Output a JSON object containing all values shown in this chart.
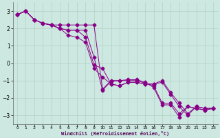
{
  "xlabel": "Windchill (Refroidissement éolien,°C)",
  "bg_color": "#cce8e0",
  "line_color": "#880088",
  "xlim": [
    -0.5,
    23.5
  ],
  "ylim": [
    -3.5,
    3.5
  ],
  "yticks": [
    -3,
    -2,
    -1,
    0,
    1,
    2,
    3
  ],
  "xticks": [
    0,
    1,
    2,
    3,
    4,
    5,
    6,
    7,
    8,
    9,
    10,
    11,
    12,
    13,
    14,
    15,
    16,
    17,
    18,
    19,
    20,
    21,
    22,
    23
  ],
  "lines": [
    [
      2.8,
      3.0,
      2.5,
      2.3,
      2.2,
      2.0,
      1.6,
      1.5,
      1.2,
      -0.3,
      -0.8,
      -1.2,
      -1.3,
      -1.1,
      -1.1,
      -1.2,
      -1.2,
      -1.1,
      -1.8,
      -2.5,
      -3.0,
      -2.5,
      -2.6,
      -2.6
    ],
    [
      2.8,
      3.0,
      2.5,
      2.3,
      2.2,
      2.0,
      1.9,
      1.9,
      1.5,
      -0.1,
      -0.3,
      -1.2,
      -1.3,
      -1.1,
      -1.1,
      -1.2,
      -1.2,
      -1.0,
      -1.7,
      -2.3,
      -2.9,
      -2.5,
      -2.6,
      -2.6
    ],
    [
      2.8,
      3.0,
      2.5,
      2.3,
      2.2,
      2.0,
      1.9,
      1.9,
      1.9,
      0.35,
      -1.55,
      -1.05,
      -1.0,
      -1.0,
      -1.0,
      -1.15,
      -1.3,
      -2.3,
      -2.3,
      -2.9,
      -2.5,
      -2.6,
      -2.7,
      -2.6
    ],
    [
      2.8,
      3.0,
      2.5,
      2.3,
      2.2,
      2.2,
      2.2,
      2.2,
      2.2,
      2.2,
      -1.5,
      -1.0,
      -1.0,
      -0.95,
      -0.95,
      -1.1,
      -1.4,
      -2.4,
      -2.4,
      -3.1,
      -2.5,
      -2.6,
      -2.7,
      -2.6
    ]
  ],
  "marker_x": [
    [
      0,
      1,
      2,
      3,
      5,
      6,
      7,
      8,
      9,
      10,
      11,
      12,
      13,
      14,
      15,
      16,
      17,
      18,
      19,
      20,
      21,
      22,
      23
    ],
    [
      0,
      1,
      2,
      3,
      5,
      6,
      7,
      8,
      9,
      10,
      11,
      12,
      13,
      14,
      15,
      16,
      17,
      18,
      19,
      20,
      21,
      22,
      23
    ],
    [
      0,
      1,
      2,
      3,
      5,
      6,
      7,
      8,
      9,
      10,
      11,
      12,
      13,
      14,
      15,
      16,
      17,
      18,
      19,
      20,
      21,
      22,
      23
    ],
    [
      0,
      1,
      2,
      3,
      5,
      6,
      7,
      8,
      9,
      10,
      11,
      12,
      13,
      14,
      15,
      16,
      17,
      18,
      19,
      20,
      21,
      22,
      23
    ]
  ]
}
